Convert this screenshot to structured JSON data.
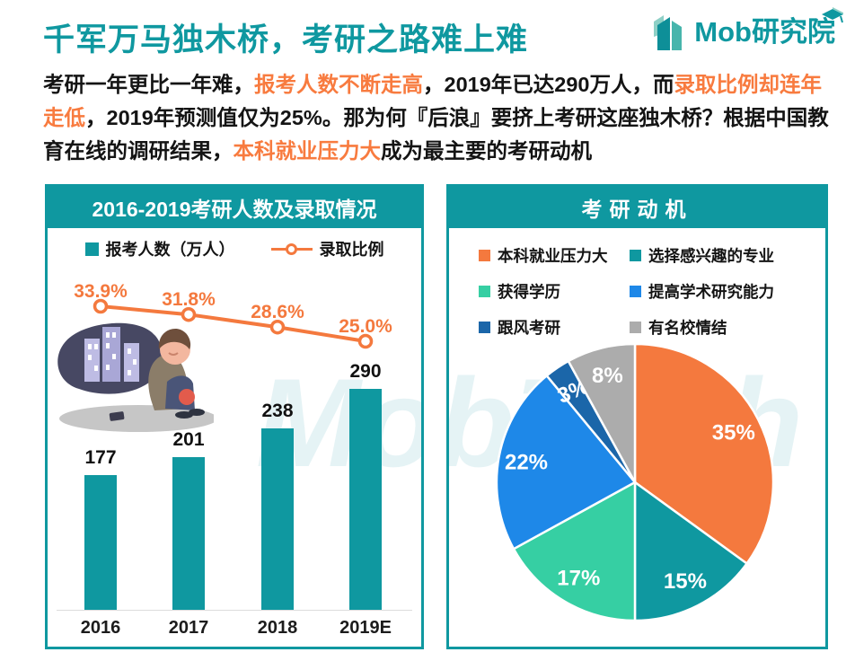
{
  "page": {
    "title": "千军万马独木桥，考研之路难上难",
    "watermark": "MobTech",
    "logo": {
      "brand": "Mob研究院",
      "icon": "building-bars-icon",
      "cap_icon": "graduation-cap-icon"
    }
  },
  "intro": {
    "segments": [
      {
        "text": "考研一年更比一年难，",
        "highlight": false
      },
      {
        "text": "报考人数不断走高",
        "highlight": true
      },
      {
        "text": "，2019年已达290万人，而",
        "highlight": false
      },
      {
        "text": "录取比例却连年走低",
        "highlight": true
      },
      {
        "text": "，2019年预测值仅为25%。那为何『后浪』要挤上考研这座独木桥？根据中国教育在线的调研结果，",
        "highlight": false
      },
      {
        "text": "本科就业压力大",
        "highlight": true
      },
      {
        "text": "成为最主要的考研动机",
        "highlight": false
      }
    ]
  },
  "colors": {
    "teal": "#0F98A0",
    "orange": "#F4793E",
    "highlight_text": "#F87B3F",
    "axis": "#DDDDDD"
  },
  "chart_data": [
    {
      "type": "bar+line",
      "title": "2016-2019考研人数及录取情况",
      "categories": [
        "2016",
        "2017",
        "2018",
        "2019E"
      ],
      "series": [
        {
          "name": "报考人数（万人）",
          "type": "bar",
          "values": [
            177,
            201,
            238,
            290
          ],
          "color": "#0F98A0"
        },
        {
          "name": "录取比例",
          "type": "line",
          "values_pct": [
            33.9,
            31.8,
            28.6,
            25.0
          ],
          "labels": [
            "33.9%",
            "31.8%",
            "28.6%",
            "25.0%"
          ],
          "color": "#F4793E"
        }
      ],
      "ylim": [
        0,
        290
      ],
      "grid": false,
      "legend_position": "top"
    },
    {
      "type": "pie",
      "title": "考研动机",
      "slices": [
        {
          "label": "本科就业压力大",
          "value": 35,
          "text": "35%",
          "color": "#F4793E"
        },
        {
          "label": "选择感兴趣的专业",
          "value": 15,
          "text": "15%",
          "color": "#0F98A0"
        },
        {
          "label": "获得学历",
          "value": 17,
          "text": "17%",
          "color": "#36CFA3"
        },
        {
          "label": "提高学术研究能力",
          "value": 22,
          "text": "22%",
          "color": "#1E88E8"
        },
        {
          "label": "跟风考研",
          "value": 3,
          "text": "3%",
          "color": "#1B66A9"
        },
        {
          "label": "有名校情结",
          "value": 8,
          "text": "8%",
          "color": "#ACACAC"
        }
      ],
      "start_angle_deg": 0,
      "direction": "clockwise",
      "legend_position": "top"
    }
  ]
}
